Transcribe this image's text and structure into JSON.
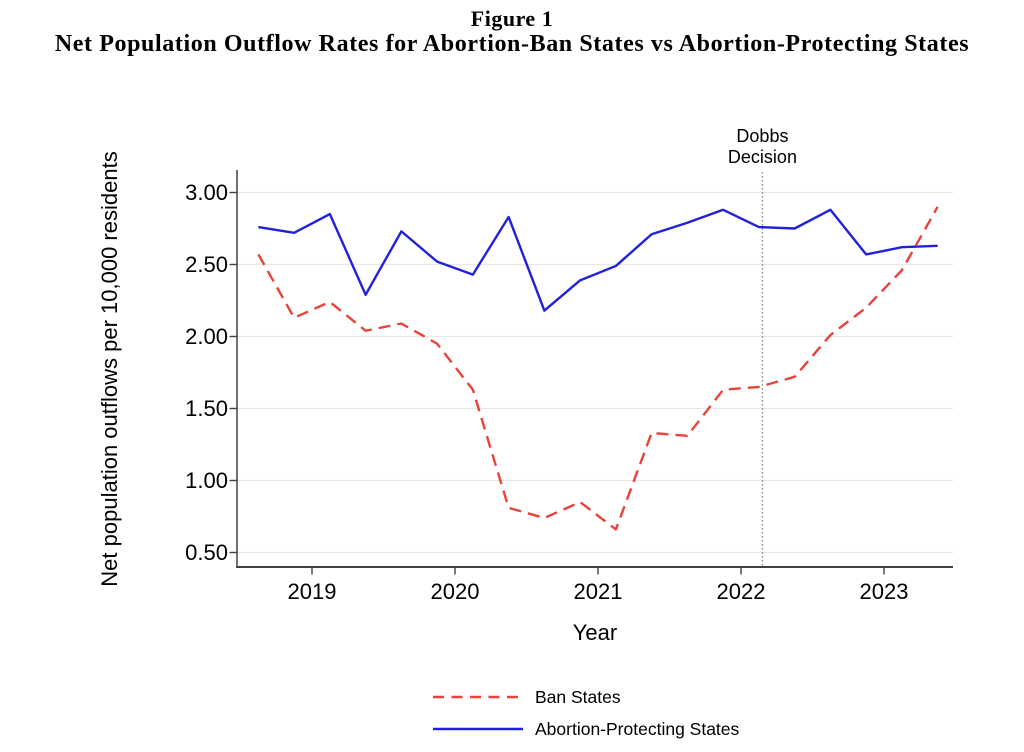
{
  "title_block": {
    "line1": "Figure 1",
    "line2": "Net Population Outflow Rates for Abortion-Ban States vs Abortion-Protecting States"
  },
  "chart_data": {
    "type": "line",
    "title": "Net Population Outflow Rates for Abortion-Ban States vs Abortion-Protecting States",
    "xlabel": "Year",
    "ylabel": "Net population outflows per 10,000 residents",
    "grid": "horizontal",
    "legend_position": "bottom-center",
    "xlim": [
      2018.48,
      2023.48
    ],
    "ylim": [
      0.4,
      3.16
    ],
    "x_tick_labels": [
      "2019",
      "2020",
      "2021",
      "2022",
      "2023"
    ],
    "x_tick_values": [
      2019,
      2020,
      2021,
      2022,
      2023
    ],
    "y_tick_labels": [
      "3.00",
      "2.50",
      "2.00",
      "1.50",
      "1.00",
      "0.50"
    ],
    "y_tick_values": [
      3.0,
      2.5,
      2.0,
      1.5,
      1.0,
      0.5
    ],
    "x": [
      2018.625,
      2018.875,
      2019.125,
      2019.375,
      2019.625,
      2019.875,
      2020.125,
      2020.375,
      2020.625,
      2020.875,
      2021.125,
      2021.375,
      2021.625,
      2021.875,
      2022.125,
      2022.375,
      2022.625,
      2022.875,
      2023.125,
      2023.375
    ],
    "series": [
      {
        "name": "Ban States",
        "color": "#e8433a",
        "line_style": "dashed",
        "values": [
          2.57,
          2.13,
          2.24,
          2.04,
          2.09,
          1.95,
          1.63,
          0.81,
          0.74,
          0.85,
          0.66,
          1.33,
          1.31,
          1.63,
          1.65,
          1.72,
          2.01,
          2.2,
          2.46,
          2.9
        ]
      },
      {
        "name": "Abortion-Protecting States",
        "color": "#2121dd",
        "line_style": "solid",
        "values": [
          2.76,
          2.72,
          2.85,
          2.29,
          2.73,
          2.52,
          2.43,
          2.83,
          2.18,
          2.39,
          2.49,
          2.71,
          2.79,
          2.88,
          2.76,
          2.75,
          2.88,
          2.57,
          2.62,
          2.63
        ]
      }
    ],
    "annotations": [
      {
        "type": "vline",
        "x": 2022.15,
        "style": "dotted",
        "color": "#909090",
        "label_line1": "Dobbs",
        "label_line2": "Decision"
      }
    ]
  }
}
